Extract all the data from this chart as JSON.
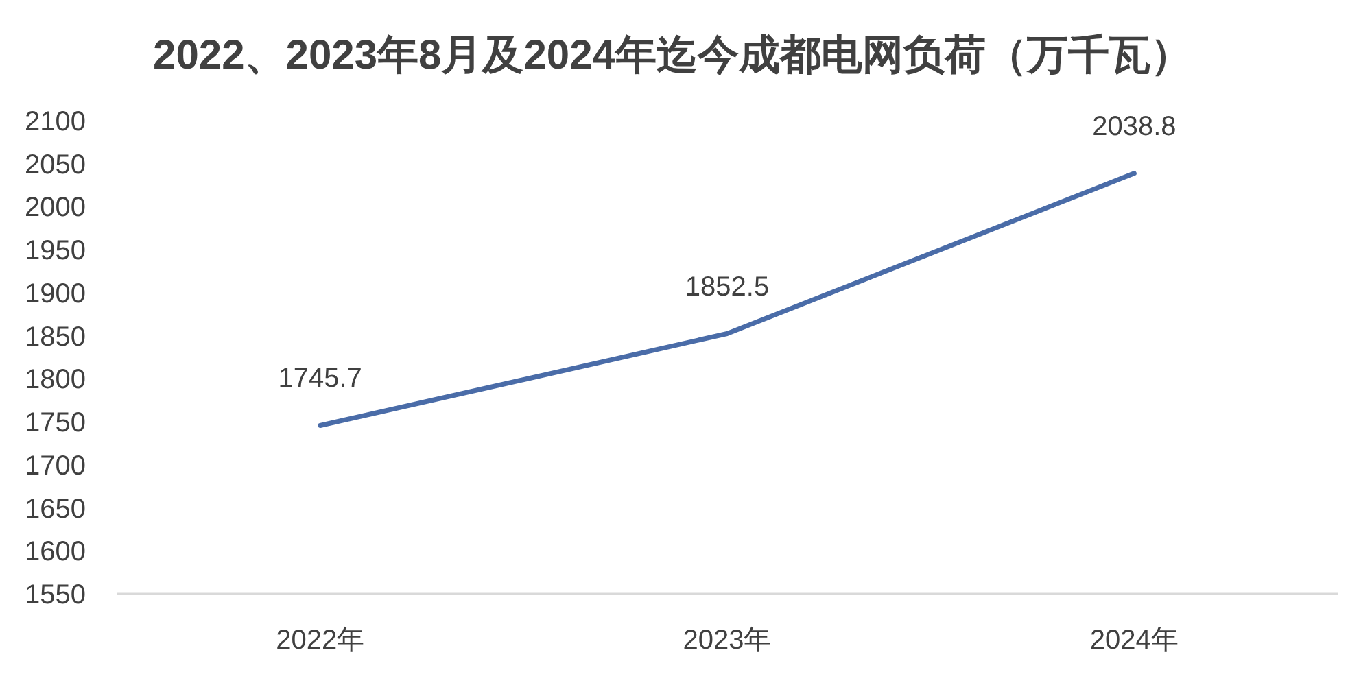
{
  "chart_data": {
    "type": "line",
    "title": "2022、2023年8月及2024年迄今成都电网负荷（万千瓦）",
    "categories": [
      "2022年",
      "2023年",
      "2024年"
    ],
    "series": [
      {
        "color": "#4a6ca8",
        "values": [
          1745.7,
          1852.5,
          2038.8
        ]
      }
    ],
    "ylim": [
      1550,
      2100
    ],
    "yticks": [
      1550,
      1600,
      1650,
      1700,
      1750,
      1800,
      1850,
      1900,
      1950,
      2000,
      2050,
      2100
    ],
    "data_labels": true,
    "grid": false
  }
}
